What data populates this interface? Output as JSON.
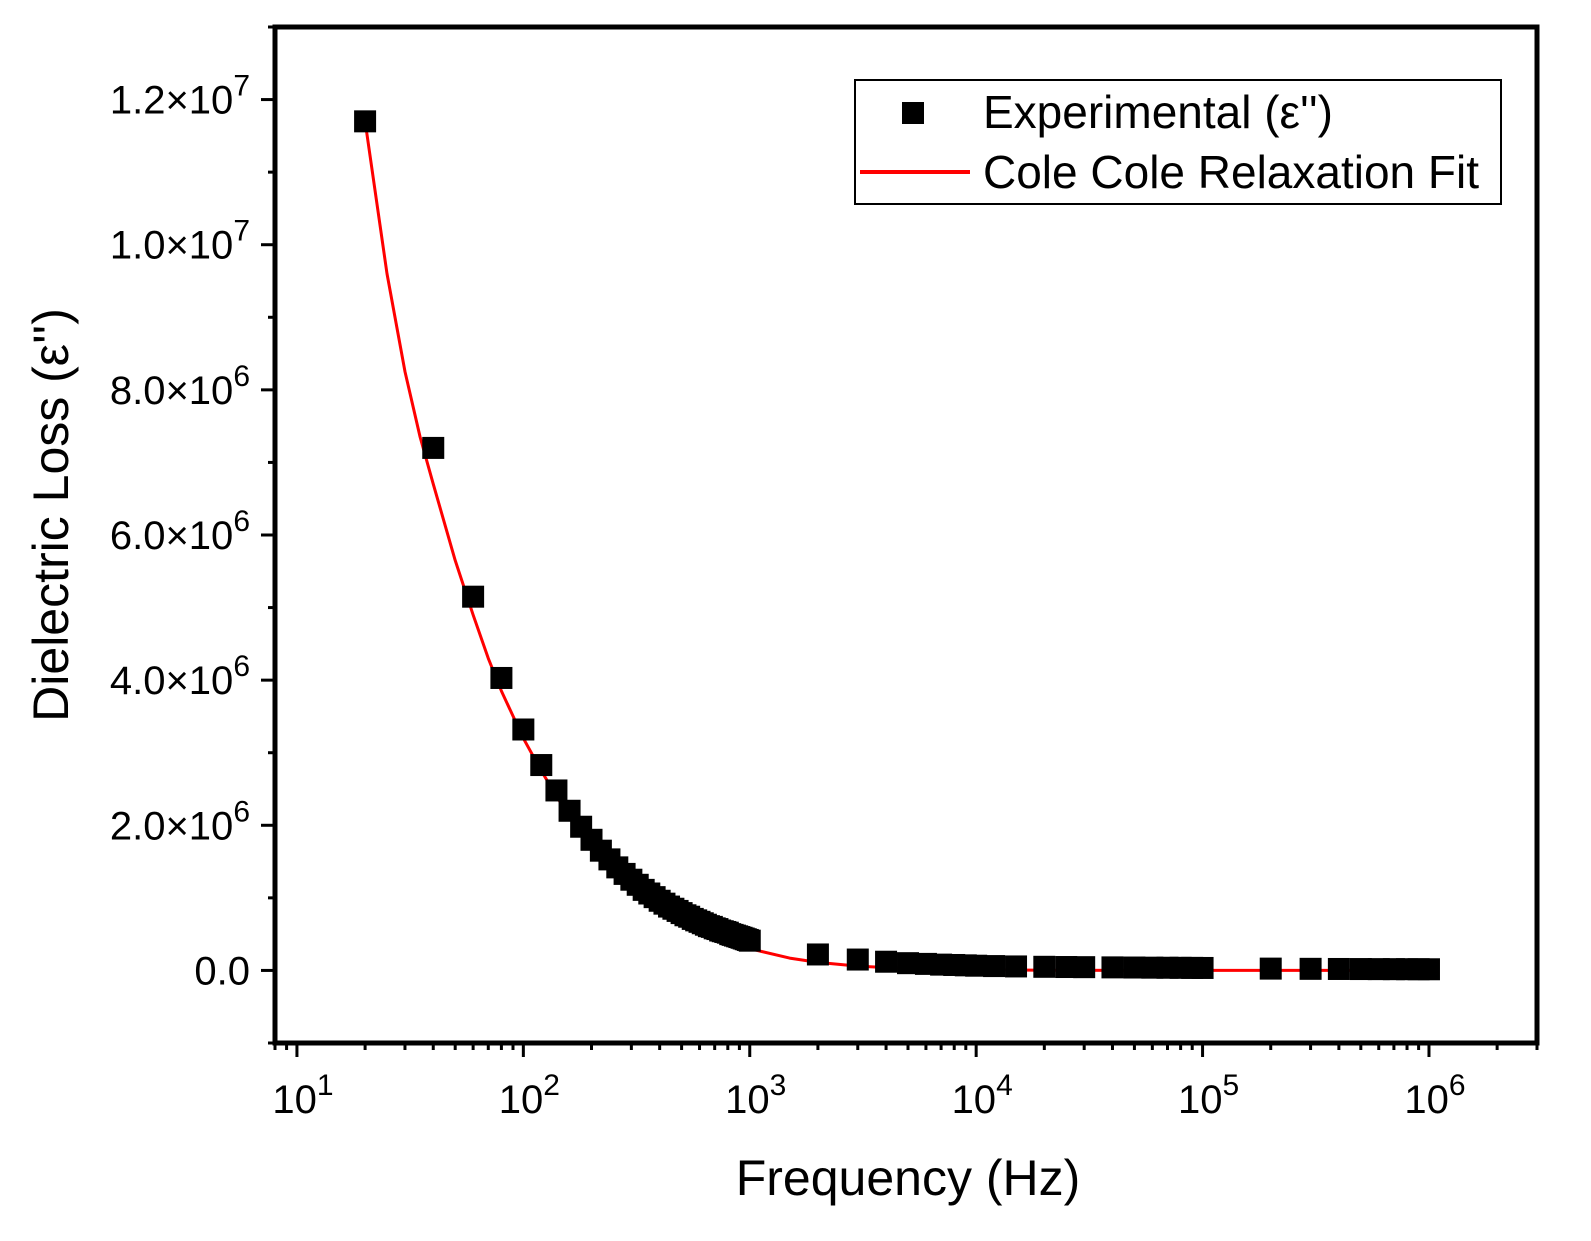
{
  "chart_data": {
    "type": "scatter",
    "xlabel": "Frequency (Hz)",
    "ylabel": "Dielectric Loss (ε'')",
    "x_scale": "log",
    "xlim": [
      8,
      3000000
    ],
    "ylim": [
      -1000000,
      13000000
    ],
    "x_ticks": [
      {
        "value": 10,
        "base": "10",
        "exp": "1"
      },
      {
        "value": 100,
        "base": "10",
        "exp": "2"
      },
      {
        "value": 1000,
        "base": "10",
        "exp": "3"
      },
      {
        "value": 10000,
        "base": "10",
        "exp": "4"
      },
      {
        "value": 100000,
        "base": "10",
        "exp": "5"
      },
      {
        "value": 1000000,
        "base": "10",
        "exp": "6"
      }
    ],
    "y_ticks": [
      {
        "value": 0,
        "mant": "0.0",
        "exp": ""
      },
      {
        "value": 2000000,
        "mant": "2.0×10",
        "exp": "6"
      },
      {
        "value": 4000000,
        "mant": "4.0×10",
        "exp": "6"
      },
      {
        "value": 6000000,
        "mant": "6.0×10",
        "exp": "6"
      },
      {
        "value": 8000000,
        "mant": "8.0×10",
        "exp": "6"
      },
      {
        "value": 10000000,
        "mant": "1.0×10",
        "exp": "7"
      },
      {
        "value": 12000000,
        "mant": "1.2×10",
        "exp": "7"
      }
    ],
    "grid": false,
    "legend_position": "top-right",
    "series": [
      {
        "name": "Experimental (ε'')",
        "marker": "square",
        "color": "#000000",
        "x": [
          20,
          40,
          60,
          80,
          100,
          120,
          140,
          160,
          180,
          200,
          220,
          240,
          260,
          280,
          300,
          320,
          340,
          360,
          380,
          400,
          420,
          440,
          460,
          480,
          500,
          520,
          540,
          560,
          580,
          600,
          620,
          640,
          660,
          680,
          700,
          720,
          740,
          760,
          780,
          800,
          820,
          840,
          860,
          880,
          900,
          920,
          940,
          960,
          980,
          1000,
          2000,
          3000,
          4000,
          5000,
          6000,
          7000,
          8000,
          9000,
          10000,
          12000,
          15000,
          20000,
          25000,
          30000,
          40000,
          50000,
          60000,
          70000,
          80000,
          90000,
          100000,
          200000,
          300000,
          400000,
          500000,
          600000,
          700000,
          800000,
          900000,
          1000000
        ],
        "y": [
          11700000,
          7200000,
          5150000,
          4030000,
          3320000,
          2830000,
          2480000,
          2200000,
          1980000,
          1800000,
          1650000,
          1530000,
          1420000,
          1330000,
          1250000,
          1180000,
          1110000,
          1060000,
          1010000,
          960000,
          920000,
          880000,
          850000,
          820000,
          790000,
          760000,
          740000,
          710000,
          690000,
          670000,
          650000,
          630000,
          610000,
          600000,
          580000,
          570000,
          550000,
          540000,
          530000,
          520000,
          500000,
          490000,
          480000,
          470000,
          460000,
          450000,
          440000,
          430000,
          420000,
          410000,
          220000,
          150000,
          120000,
          100000,
          90000,
          80000,
          75000,
          70000,
          65000,
          60000,
          55000,
          50000,
          47000,
          45000,
          42000,
          40000,
          38000,
          37000,
          36000,
          35000,
          34000,
          25000,
          22000,
          20000,
          19000,
          18000,
          17500,
          17000,
          16500,
          16000
        ]
      },
      {
        "name": "Cole Cole Relaxation Fit",
        "marker": "line",
        "color": "#ff0000",
        "x": [
          20,
          25,
          30,
          35,
          40,
          50,
          60,
          70,
          80,
          100,
          120,
          150,
          200,
          250,
          300,
          400,
          500,
          700,
          1000,
          1500,
          2000,
          3000,
          5000,
          7000,
          10000,
          20000,
          50000,
          100000,
          200000,
          500000,
          1000000
        ],
        "y": [
          11700000,
          9600000,
          8250000,
          7350000,
          6700000,
          5650000,
          4900000,
          4300000,
          3850000,
          3200000,
          2750000,
          2250000,
          1700000,
          1380000,
          1150000,
          850000,
          670000,
          460000,
          300000,
          170000,
          110000,
          60000,
          25000,
          15000,
          8000,
          3000,
          1000,
          500,
          200,
          80,
          40
        ]
      }
    ]
  }
}
